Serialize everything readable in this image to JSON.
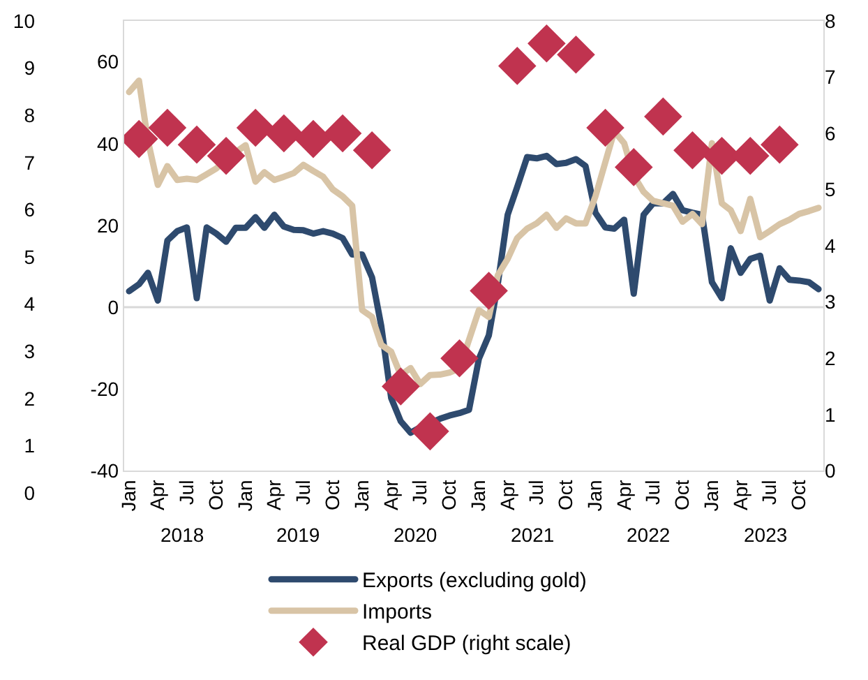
{
  "chart_data": {
    "type": "line",
    "x": [
      "2018-01",
      "2018-02",
      "2018-03",
      "2018-04",
      "2018-05",
      "2018-06",
      "2018-07",
      "2018-08",
      "2018-09",
      "2018-10",
      "2018-11",
      "2018-12",
      "2019-01",
      "2019-02",
      "2019-03",
      "2019-04",
      "2019-05",
      "2019-06",
      "2019-07",
      "2019-08",
      "2019-09",
      "2019-10",
      "2019-11",
      "2019-12",
      "2020-01",
      "2020-02",
      "2020-03",
      "2020-04",
      "2020-05",
      "2020-06",
      "2020-07",
      "2020-08",
      "2020-09",
      "2020-10",
      "2020-11",
      "2020-12",
      "2021-01",
      "2021-02",
      "2021-03",
      "2021-04",
      "2021-05",
      "2021-06",
      "2021-07",
      "2021-08",
      "2021-09",
      "2021-10",
      "2021-11",
      "2021-12",
      "2022-01",
      "2022-02",
      "2022-03",
      "2022-04",
      "2022-05",
      "2022-06",
      "2022-07",
      "2022-08",
      "2022-09",
      "2022-10",
      "2022-11",
      "2022-12",
      "2023-01",
      "2023-02",
      "2023-03",
      "2023-04",
      "2023-05",
      "2023-06",
      "2023-07",
      "2023-08",
      "2023-09",
      "2023-10",
      "2023-11",
      "2023-12"
    ],
    "series": [
      {
        "name": "Exports (excluding gold)",
        "color": "#2e4a6e",
        "values": [
          3.9,
          5.6,
          8.4,
          1.6,
          16.3,
          18.6,
          19.5,
          2.2,
          19.5,
          18,
          16,
          19.4,
          19.4,
          22,
          19.4,
          22.6,
          19.7,
          18.9,
          18.8,
          18,
          18.6,
          18,
          16.9,
          12.9,
          12.9,
          7.3,
          -4.6,
          -22.2,
          -27.9,
          -30.7,
          -29.4,
          null,
          -27.3,
          -26.5,
          -25.9,
          -25.1,
          -12.6,
          -6.9,
          5.6,
          22.6,
          29.4,
          36.7,
          36.4,
          37,
          35,
          35.3,
          36.2,
          34.5,
          23.1,
          19.5,
          19.2,
          21.4,
          3.3,
          22.6,
          25.4,
          25.4,
          27.7,
          23.7,
          23.1,
          22.6,
          6.1,
          2.2,
          14.4,
          8.4,
          11.8,
          12.6,
          1.6,
          9.5,
          6.7,
          6.5,
          6.1,
          4.4
        ]
      },
      {
        "name": "Imports",
        "color": "#d8c4a6",
        "values": [
          52.6,
          55.4,
          40.7,
          29.9,
          34.5,
          31.1,
          31.4,
          31.1,
          32.5,
          33.9,
          null,
          37.9,
          39.6,
          30.7,
          33,
          31.1,
          31.9,
          32.8,
          34.8,
          33.3,
          31.9,
          28.8,
          27.1,
          24.8,
          -0.7,
          -2.4,
          -9.2,
          -10.9,
          -16.6,
          -14.9,
          -18.8,
          -16.6,
          -16.5,
          -16,
          -15,
          null,
          -0.7,
          -2.4,
          7.8,
          11.8,
          16.9,
          19.2,
          20.5,
          22.6,
          19.4,
          21.7,
          20.5,
          20.5,
          27.1,
          null,
          43,
          40.1,
          32.2,
          28.2,
          26,
          25.4,
          24.8,
          20.9,
          22.8,
          20.3,
          40.1,
          25.4,
          23.7,
          18.6,
          26.5,
          17.1,
          18.6,
          20.3,
          21.4,
          22.8,
          23.5,
          24.3
        ]
      },
      {
        "name": "Real GDP (right scale)",
        "type": "scatter",
        "axis": "y2",
        "marker": "diamond",
        "color": "#c0334f",
        "x": [
          "2018-02",
          "2018-05",
          "2018-08",
          "2018-11",
          "2019-02",
          "2019-05",
          "2019-08",
          "2019-11",
          "2020-02",
          "2020-05",
          "2020-08",
          "2020-11",
          "2021-02",
          "2021-05",
          "2021-08",
          "2021-11",
          "2022-02",
          "2022-05",
          "2022-08",
          "2022-11",
          "2023-02",
          "2023-05",
          "2023-08"
        ],
        "values": [
          5.9,
          6.1,
          5.8,
          5.6,
          6.1,
          6.0,
          5.9,
          6.0,
          5.7,
          1.5,
          0.7,
          2.0,
          3.2,
          7.2,
          7.6,
          7.4,
          6.1,
          5.4,
          6.3,
          5.7,
          5.6,
          5.6,
          5.8
        ]
      }
    ],
    "xlim": [
      "2017-12-16",
      "2023-12-16"
    ],
    "xticks": [
      {
        "value": "2018-01",
        "label": "Jan"
      },
      {
        "value": "2018-04",
        "label": "Apr"
      },
      {
        "value": "2018-07",
        "label": "Jul"
      },
      {
        "value": "2018-10",
        "label": "Oct"
      },
      {
        "value": "2019-01",
        "label": "Jan"
      },
      {
        "value": "2019-04",
        "label": "Apr"
      },
      {
        "value": "2019-07",
        "label": "Jul"
      },
      {
        "value": "2019-10",
        "label": "Oct"
      },
      {
        "value": "2020-01",
        "label": "Jan"
      },
      {
        "value": "2020-04",
        "label": "Apr"
      },
      {
        "value": "2020-07",
        "label": "Jul"
      },
      {
        "value": "2020-10",
        "label": "Oct"
      },
      {
        "value": "2021-01",
        "label": "Jan"
      },
      {
        "value": "2021-04",
        "label": "Apr"
      },
      {
        "value": "2021-07",
        "label": "Jul"
      },
      {
        "value": "2021-10",
        "label": "Oct"
      },
      {
        "value": "2022-01",
        "label": "Jan"
      },
      {
        "value": "2022-04",
        "label": "Apr"
      },
      {
        "value": "2022-07",
        "label": "Jul"
      },
      {
        "value": "2022-10",
        "label": "Oct"
      },
      {
        "value": "2023-01",
        "label": "Jan"
      },
      {
        "value": "2023-04",
        "label": "Apr"
      },
      {
        "value": "2023-07",
        "label": "Jul"
      },
      {
        "value": "2023-10",
        "label": "Oct"
      }
    ],
    "x2lim": [
      "2017-12-16",
      "2023-12-16"
    ],
    "x2ticks": [
      {
        "value": "2018-06-16",
        "label": "2018"
      },
      {
        "value": "2019-06-16",
        "label": "2019"
      },
      {
        "value": "2020-06-16",
        "label": "2020"
      },
      {
        "value": "2021-06-16",
        "label": "2021"
      },
      {
        "value": "2022-06-16",
        "label": "2022"
      },
      {
        "value": "2023-06-16",
        "label": "2023"
      }
    ],
    "ylim": [
      -40,
      70
    ],
    "yticks": [
      -40,
      -20,
      0,
      20,
      40,
      60
    ],
    "y2lim": [
      0,
      8
    ],
    "y2ticks": [
      0,
      1,
      2,
      3,
      4,
      5,
      6,
      7,
      8
    ],
    "y3lim": [
      0,
      10
    ],
    "y3ticks": [
      0,
      1,
      2,
      3,
      4,
      5,
      6,
      7,
      8,
      9,
      10
    ],
    "ref_lines": [
      {
        "axis": "y",
        "value": 0,
        "color": "#d9d9d9"
      }
    ],
    "grid": false,
    "legend": "bottom",
    "line_style": "solid"
  }
}
